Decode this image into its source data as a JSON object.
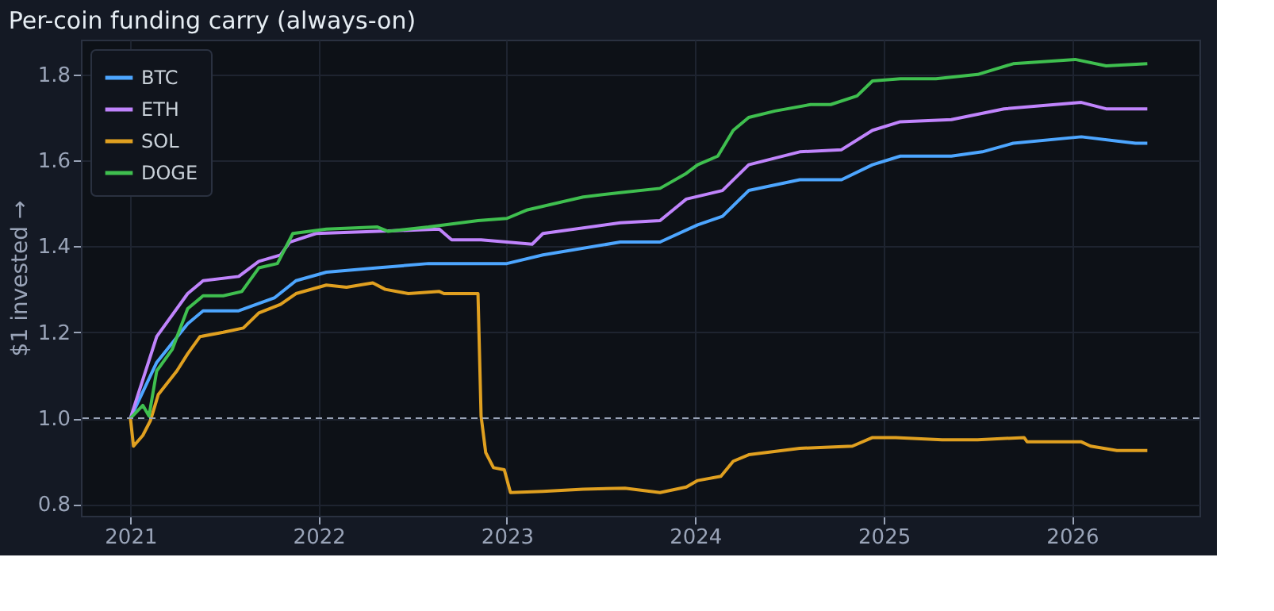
{
  "chart_data": {
    "type": "line",
    "title": "Per-coin funding carry (always-on)",
    "ylabel": "$1 invested →",
    "xlim": [
      "2020-09-27",
      "2026-09-05"
    ],
    "xticks": [
      "2021",
      "2022",
      "2023",
      "2024",
      "2025",
      "2026"
    ],
    "ylim": [
      0.773,
      1.881
    ],
    "yticks": [
      0.8,
      {
        "value": 1,
        "label": "1.0"
      },
      1.2,
      1.4,
      1.6,
      1.8
    ],
    "grid": true,
    "legend": "top left",
    "line_style": "solid",
    "marker": "none",
    "ref_lines": [
      {
        "axis": "y",
        "value": 1.0,
        "color": "#9aa4b8",
        "line_style": "dashed"
      }
    ],
    "series": [
      {
        "name": "BTC",
        "color": "#4da6ff",
        "x": [
          "2021-01-01",
          "2021-02-21",
          "2021-04-22",
          "2021-05-22",
          "2021-07-30",
          "2021-10-07",
          "2021-11-18",
          "2022-01-16",
          "2022-04-25",
          "2022-08-02",
          "2022-11-06",
          "2022-12-12",
          "2023-01-01",
          "2023-03-12",
          "2023-08-09",
          "2023-10-25",
          "2024-01-06",
          "2024-02-23",
          "2024-04-14",
          "2024-07-22",
          "2024-10-11",
          "2024-12-10",
          "2025-02-02",
          "2025-05-12",
          "2025-07-11",
          "2025-09-09",
          "2026-01-19",
          "2026-03-29",
          "2026-05-04",
          "2026-05-27"
        ],
        "values": [
          1.0,
          1.13,
          1.22,
          1.25,
          1.25,
          1.28,
          1.32,
          1.34,
          1.35,
          1.36,
          1.36,
          1.36,
          1.36,
          1.38,
          1.41,
          1.41,
          1.45,
          1.47,
          1.53,
          1.555,
          1.555,
          1.59,
          1.61,
          1.61,
          1.62,
          1.64,
          1.655,
          1.645,
          1.64,
          1.64
        ]
      },
      {
        "name": "ETH",
        "color": "#c084fc",
        "x": [
          "2021-01-01",
          "2021-02-21",
          "2021-04-22",
          "2021-05-22",
          "2021-07-30",
          "2021-09-07",
          "2021-10-19",
          "2021-11-06",
          "2021-12-27",
          "2022-04-25",
          "2022-08-23",
          "2022-09-16",
          "2022-11-12",
          "2023-02-19",
          "2023-03-12",
          "2023-08-09",
          "2023-10-25",
          "2023-12-15",
          "2024-02-23",
          "2024-04-14",
          "2024-07-22",
          "2024-10-11",
          "2024-12-10",
          "2025-02-02",
          "2025-05-12",
          "2025-08-22",
          "2026-01-19",
          "2026-03-08",
          "2026-05-27"
        ],
        "values": [
          1.0,
          1.19,
          1.29,
          1.32,
          1.33,
          1.365,
          1.38,
          1.41,
          1.43,
          1.435,
          1.44,
          1.415,
          1.415,
          1.405,
          1.43,
          1.455,
          1.46,
          1.51,
          1.53,
          1.59,
          1.62,
          1.625,
          1.67,
          1.69,
          1.695,
          1.72,
          1.735,
          1.72,
          1.72
        ]
      },
      {
        "name": "SOL",
        "color": "#e0a020",
        "x": [
          "2021-01-01",
          "2021-01-07",
          "2021-01-25",
          "2021-02-09",
          "2021-02-24",
          "2021-04-01",
          "2021-04-22",
          "2021-05-16",
          "2021-06-30",
          "2021-08-08",
          "2021-09-07",
          "2021-10-19",
          "2021-11-18",
          "2022-01-16",
          "2022-02-24",
          "2022-04-16",
          "2022-05-10",
          "2022-06-24",
          "2022-08-23",
          "2022-09-01",
          "2022-11-06",
          "2022-11-12",
          "2022-11-21",
          "2022-12-06",
          "2022-12-27",
          "2023-01-08",
          "2023-03-12",
          "2023-05-29",
          "2023-08-18",
          "2023-10-25",
          "2023-12-15",
          "2024-01-06",
          "2024-02-20",
          "2024-03-15",
          "2024-04-14",
          "2024-07-22",
          "2024-11-01",
          "2024-12-10",
          "2025-01-24",
          "2025-04-24",
          "2025-07-02",
          "2025-09-30",
          "2025-10-06",
          "2026-01-19",
          "2026-02-06",
          "2026-03-29",
          "2026-05-27"
        ],
        "values": [
          1.0,
          0.935,
          0.96,
          0.995,
          1.055,
          1.11,
          1.15,
          1.19,
          1.2,
          1.21,
          1.245,
          1.265,
          1.29,
          1.31,
          1.305,
          1.315,
          1.3,
          1.29,
          1.295,
          1.29,
          1.29,
          1.005,
          0.92,
          0.885,
          0.88,
          0.827,
          0.83,
          0.835,
          0.837,
          0.827,
          0.84,
          0.855,
          0.865,
          0.9,
          0.915,
          0.93,
          0.935,
          0.955,
          0.955,
          0.95,
          0.95,
          0.955,
          0.945,
          0.945,
          0.935,
          0.925,
          0.925
        ]
      },
      {
        "name": "DOGE",
        "color": "#3fbf4f",
        "x": [
          "2021-01-01",
          "2021-01-25",
          "2021-02-06",
          "2021-02-21",
          "2021-03-23",
          "2021-04-22",
          "2021-05-22",
          "2021-06-30",
          "2021-08-05",
          "2021-09-07",
          "2021-10-13",
          "2021-11-12",
          "2022-01-16",
          "2022-04-25",
          "2022-05-16",
          "2022-08-02",
          "2022-11-06",
          "2023-01-01",
          "2023-02-10",
          "2023-05-29",
          "2023-08-09",
          "2023-10-25",
          "2023-12-15",
          "2024-01-06",
          "2024-02-14",
          "2024-03-15",
          "2024-04-14",
          "2024-06-04",
          "2024-08-12",
          "2024-09-20",
          "2024-11-10",
          "2024-12-10",
          "2025-02-02",
          "2025-04-12",
          "2025-07-02",
          "2025-09-09",
          "2026-01-07",
          "2026-03-08",
          "2026-05-27"
        ],
        "values": [
          1.0,
          1.03,
          1.005,
          1.11,
          1.16,
          1.255,
          1.285,
          1.285,
          1.295,
          1.35,
          1.36,
          1.43,
          1.44,
          1.445,
          1.435,
          1.445,
          1.46,
          1.465,
          1.485,
          1.515,
          1.525,
          1.535,
          1.57,
          1.59,
          1.61,
          1.67,
          1.7,
          1.715,
          1.73,
          1.73,
          1.75,
          1.785,
          1.79,
          1.79,
          1.8,
          1.825,
          1.835,
          1.82,
          1.825
        ]
      }
    ]
  }
}
